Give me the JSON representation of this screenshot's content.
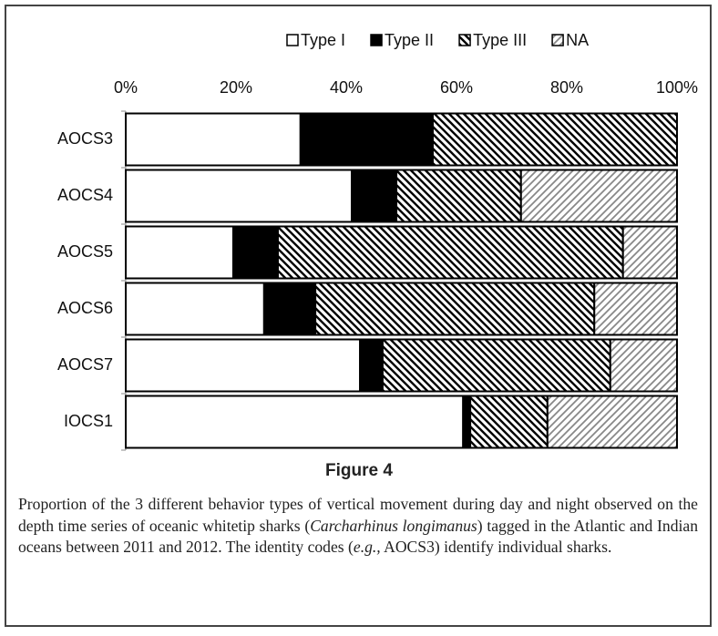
{
  "chart_data": {
    "type": "stacked-hbar",
    "categories": [
      "AOCS3",
      "AOCS4",
      "AOCS5",
      "AOCS6",
      "AOCS7",
      "IOCS1"
    ],
    "series": [
      {
        "name": "Type I",
        "color": "#ffffff",
        "hatch": "none",
        "values": [
          31.7,
          41.0,
          19.5,
          25.1,
          42.5,
          61.2
        ]
      },
      {
        "name": "Type II",
        "color": "#000000",
        "hatch": "none",
        "values": [
          24.0,
          8.1,
          8.1,
          9.3,
          4.1,
          1.3
        ]
      },
      {
        "name": "Type III",
        "color": "#000000",
        "hatch": "backward",
        "values": [
          44.3,
          22.6,
          62.6,
          50.6,
          41.3,
          14.0
        ]
      },
      {
        "name": "NA",
        "color": "#888888",
        "hatch": "forward",
        "values": [
          0,
          28.3,
          9.8,
          15.0,
          12.1,
          23.5
        ]
      }
    ],
    "xlim": [
      0,
      100
    ],
    "xticks": [
      {
        "value": 0,
        "label": "0%"
      },
      {
        "value": 20,
        "label": "20%"
      },
      {
        "value": 40,
        "label": "40%"
      },
      {
        "value": 60,
        "label": "60%"
      },
      {
        "value": 80,
        "label": "80%"
      },
      {
        "value": 100,
        "label": "100%"
      }
    ],
    "legend": "top"
  },
  "figure_label": "Figure 4",
  "caption": [
    "Proportion of the 3 different behavior types of vertical movement during day and night observed on the depth time series of oceanic whitetip sharks (",
    "Carcharhinus longimanus",
    ") tagged in the Atlantic and Indian oceans between 2011 and 2012. The identity codes (",
    "e.g.,",
    " AOCS3) identify individual sharks."
  ]
}
